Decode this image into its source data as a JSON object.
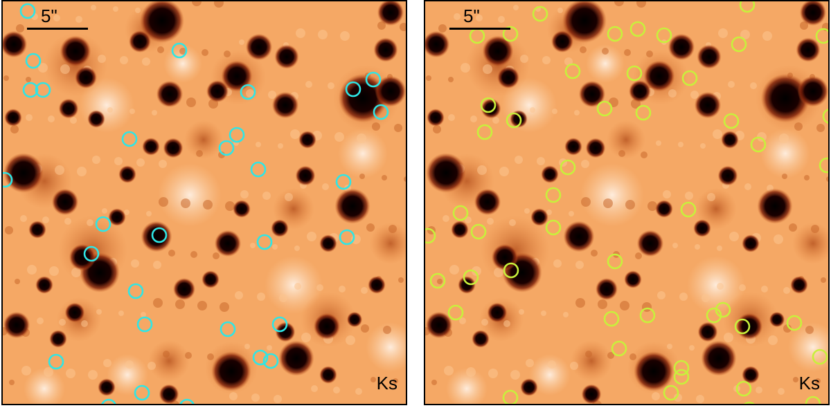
{
  "panels": [
    {
      "scale_label": "5\"",
      "band_label": "Ks",
      "marker_color": "#2ee6e6",
      "markers": [
        [
          38,
          14
        ],
        [
          46,
          86
        ],
        [
          42,
          128
        ],
        [
          60,
          128
        ],
        [
          257,
          71
        ],
        [
          356,
          131
        ],
        [
          537,
          113
        ],
        [
          508,
          127
        ],
        [
          548,
          160
        ],
        [
          185,
          199
        ],
        [
          340,
          193
        ],
        [
          325,
          212
        ],
        [
          371,
          243
        ],
        [
          5,
          258
        ],
        [
          494,
          261
        ],
        [
          147,
          322
        ],
        [
          228,
          338
        ],
        [
          380,
          348
        ],
        [
          499,
          341
        ],
        [
          130,
          365
        ],
        [
          194,
          419
        ],
        [
          207,
          467
        ],
        [
          327,
          474
        ],
        [
          402,
          467
        ],
        [
          79,
          521
        ],
        [
          374,
          515
        ],
        [
          389,
          520
        ],
        [
          203,
          566
        ],
        [
          155,
          586
        ],
        [
          268,
          586
        ]
      ]
    },
    {
      "scale_label": "5\"",
      "band_label": "Ks",
      "marker_color": "#c8f03c",
      "markers": [
        [
          778,
          18
        ],
        [
          1077,
          5
        ],
        [
          687,
          50
        ],
        [
          735,
          47
        ],
        [
          886,
          47
        ],
        [
          919,
          40
        ],
        [
          957,
          49
        ],
        [
          1065,
          62
        ],
        [
          1187,
          50
        ],
        [
          825,
          101
        ],
        [
          914,
          104
        ],
        [
          994,
          111
        ],
        [
          703,
          150
        ],
        [
          740,
          172
        ],
        [
          871,
          155
        ],
        [
          927,
          161
        ],
        [
          1054,
          173
        ],
        [
          698,
          189
        ],
        [
          1093,
          207
        ],
        [
          1197,
          166
        ],
        [
          818,
          240
        ],
        [
          1192,
          237
        ],
        [
          797,
          280
        ],
        [
          992,
          301
        ],
        [
          663,
          306
        ],
        [
          689,
          333
        ],
        [
          797,
          327
        ],
        [
          616,
          339
        ],
        [
          886,
          376
        ],
        [
          736,
          389
        ],
        [
          630,
          404
        ],
        [
          678,
          399
        ],
        [
          656,
          450
        ],
        [
          881,
          459
        ],
        [
          933,
          454
        ],
        [
          1029,
          454
        ],
        [
          1042,
          446
        ],
        [
          1070,
          470
        ],
        [
          1145,
          465
        ],
        [
          892,
          502
        ],
        [
          1182,
          514
        ],
        [
          982,
          530
        ],
        [
          982,
          543
        ],
        [
          967,
          566
        ],
        [
          1072,
          560
        ],
        [
          735,
          573
        ],
        [
          1080,
          590
        ],
        [
          1172,
          582
        ]
      ]
    }
  ]
}
